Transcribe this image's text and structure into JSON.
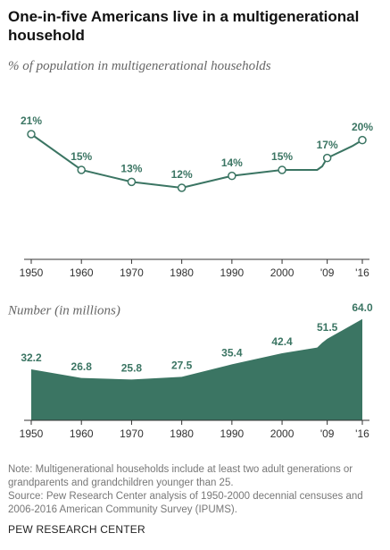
{
  "chart_data": [
    {
      "type": "line",
      "title": "One-in-five Americans live in a multigenerational household",
      "subtitle": "% of population in multigenerational households",
      "x": [
        1950,
        1960,
        1970,
        1980,
        1990,
        2000,
        2007,
        2008,
        2009,
        2010,
        2012,
        2014,
        2016
      ],
      "values": [
        21,
        15,
        13,
        12,
        14,
        15,
        15,
        15.6,
        17,
        17.4,
        18.2,
        19,
        20
      ],
      "value_labels": [
        "21%",
        "15%",
        "13%",
        "12%",
        "14%",
        "15%",
        null,
        null,
        "17%",
        null,
        null,
        null,
        "20%"
      ],
      "color": "#3b7563",
      "xlim": [
        1950,
        2016
      ],
      "ylim": [
        0,
        22.5
      ],
      "xticks": [
        1950,
        1960,
        1970,
        1980,
        1990,
        2000,
        {
          "value": 2009,
          "label": "'09"
        },
        {
          "value": 2016,
          "label": "'16"
        }
      ]
    },
    {
      "type": "area",
      "subtitle": "Number (in millions)",
      "x": [
        1950,
        1960,
        1970,
        1980,
        1990,
        2000,
        2007,
        2008,
        2009,
        2016
      ],
      "values": [
        32.2,
        26.8,
        25.8,
        27.5,
        35.4,
        42.4,
        46,
        49,
        51.5,
        64.0
      ],
      "value_labels": [
        "32.2",
        "26.8",
        "25.8",
        "27.5",
        "35.4",
        "42.4",
        null,
        null,
        "51.5",
        "64.0"
      ],
      "color": "#3b7563",
      "xlim": [
        1950,
        2016
      ],
      "ylim": [
        0,
        65
      ],
      "xticks": [
        1950,
        1960,
        1970,
        1980,
        1990,
        2000,
        {
          "value": 2009,
          "label": "'09"
        },
        {
          "value": 2016,
          "label": "'16"
        }
      ]
    }
  ],
  "notes": {
    "note": "Note: Multigenerational households include at least two adult generations or grandparents and grandchildren younger than 25.",
    "source": "Source: Pew Research Center analysis of 1950-2000 decennial censuses and 2006-2016 American Community Survey (IPUMS).",
    "credit": "PEW RESEARCH CENTER"
  }
}
